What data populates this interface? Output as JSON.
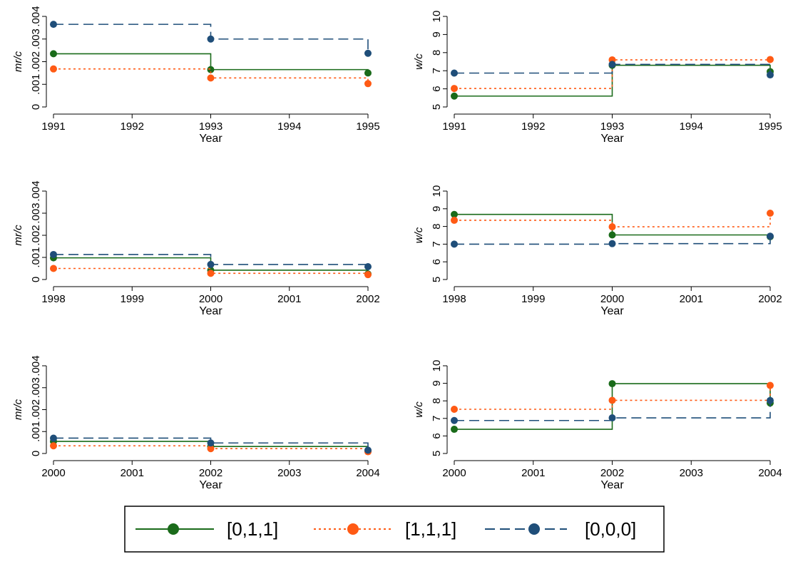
{
  "chart_data": [
    {
      "type": "line",
      "step": true,
      "panel": 1,
      "xlabel": "Year",
      "ylabel": "mr/c",
      "xlim": [
        1991,
        1995
      ],
      "ylim": [
        0,
        0.004
      ],
      "x": [
        1991,
        1993,
        1995
      ],
      "x_ticks": [
        "1991",
        "1992",
        "1993",
        "1994",
        "1995"
      ],
      "y_ticks": [
        {
          "value": 0,
          "label": "0"
        },
        {
          "value": 0.001,
          "label": ".001"
        },
        {
          "value": 0.002,
          "label": ".002"
        },
        {
          "value": 0.003,
          "label": ".003"
        },
        {
          "value": 0.004,
          "label": ".004"
        }
      ],
      "series": [
        {
          "name": "[0,1,1]",
          "values": [
            0.00235,
            0.00165,
            0.0015
          ]
        },
        {
          "name": "[1,1,1]",
          "values": [
            0.00168,
            0.00128,
            0.00103
          ]
        },
        {
          "name": "[0,0,0]",
          "values": [
            0.00365,
            0.003,
            0.00237
          ]
        }
      ]
    },
    {
      "type": "line",
      "step": true,
      "panel": 2,
      "xlabel": "Year",
      "ylabel": "w/c",
      "xlim": [
        1991,
        1995
      ],
      "ylim": [
        5,
        10
      ],
      "x": [
        1991,
        1993,
        1995
      ],
      "x_ticks": [
        "1991",
        "1992",
        "1993",
        "1994",
        "1995"
      ],
      "y_ticks": [
        {
          "value": 5,
          "label": "5"
        },
        {
          "value": 6,
          "label": "6"
        },
        {
          "value": 7,
          "label": "7"
        },
        {
          "value": 8,
          "label": "8"
        },
        {
          "value": 9,
          "label": "9"
        },
        {
          "value": 10,
          "label": "10"
        }
      ],
      "series": [
        {
          "name": "[0,1,1]",
          "values": [
            5.6,
            7.3,
            6.95
          ]
        },
        {
          "name": "[1,1,1]",
          "values": [
            6.02,
            7.6,
            7.62
          ]
        },
        {
          "name": "[0,0,0]",
          "values": [
            6.87,
            7.35,
            6.77
          ]
        }
      ]
    },
    {
      "type": "line",
      "step": true,
      "panel": 3,
      "xlabel": "Year",
      "ylabel": "mr/c",
      "xlim": [
        1998,
        2002
      ],
      "ylim": [
        0,
        0.004
      ],
      "x": [
        1998,
        2000,
        2002
      ],
      "x_ticks": [
        "1998",
        "1999",
        "2000",
        "2001",
        "2002"
      ],
      "y_ticks": [
        {
          "value": 0,
          "label": "0"
        },
        {
          "value": 0.001,
          "label": ".001"
        },
        {
          "value": 0.002,
          "label": ".002"
        },
        {
          "value": 0.003,
          "label": ".003"
        },
        {
          "value": 0.004,
          "label": ".004"
        }
      ],
      "series": [
        {
          "name": "[0,1,1]",
          "values": [
            0.00098,
            0.00042,
            0.00025
          ]
        },
        {
          "name": "[1,1,1]",
          "values": [
            0.0005,
            0.00028,
            0.00022
          ]
        },
        {
          "name": "[0,0,0]",
          "values": [
            0.00113,
            0.00068,
            0.00058
          ]
        }
      ]
    },
    {
      "type": "line",
      "step": true,
      "panel": 4,
      "xlabel": "Year",
      "ylabel": "w/c",
      "xlim": [
        1998,
        2002
      ],
      "ylim": [
        5,
        10
      ],
      "x": [
        1998,
        2000,
        2002
      ],
      "x_ticks": [
        "1998",
        "1999",
        "2000",
        "2001",
        "2002"
      ],
      "y_ticks": [
        {
          "value": 5,
          "label": "5"
        },
        {
          "value": 6,
          "label": "6"
        },
        {
          "value": 7,
          "label": "7"
        },
        {
          "value": 8,
          "label": "8"
        },
        {
          "value": 9,
          "label": "9"
        },
        {
          "value": 10,
          "label": "10"
        }
      ],
      "series": [
        {
          "name": "[0,1,1]",
          "values": [
            8.68,
            7.52,
            7.42
          ]
        },
        {
          "name": "[1,1,1]",
          "values": [
            8.35,
            7.98,
            8.75
          ]
        },
        {
          "name": "[0,0,0]",
          "values": [
            7.0,
            7.03,
            7.45
          ]
        }
      ]
    },
    {
      "type": "line",
      "step": true,
      "panel": 5,
      "xlabel": "Year",
      "ylabel": "mr/c",
      "xlim": [
        2000,
        2004
      ],
      "ylim": [
        0,
        0.004
      ],
      "x": [
        2000,
        2002,
        2004
      ],
      "x_ticks": [
        "2000",
        "2001",
        "2002",
        "2003",
        "2004"
      ],
      "y_ticks": [
        {
          "value": 0,
          "label": "0"
        },
        {
          "value": 0.001,
          "label": ".001"
        },
        {
          "value": 0.002,
          "label": ".002"
        },
        {
          "value": 0.003,
          "label": ".003"
        },
        {
          "value": 0.004,
          "label": ".004"
        }
      ],
      "series": [
        {
          "name": "[0,1,1]",
          "values": [
            0.00055,
            0.00032,
            0.00012
          ]
        },
        {
          "name": "[1,1,1]",
          "values": [
            0.00035,
            0.00022,
            8e-05
          ]
        },
        {
          "name": "[0,0,0]",
          "values": [
            0.0007,
            0.00048,
            0.00015
          ]
        }
      ]
    },
    {
      "type": "line",
      "step": true,
      "panel": 6,
      "xlabel": "Year",
      "ylabel": "w/c",
      "xlim": [
        2000,
        2004
      ],
      "ylim": [
        5,
        10
      ],
      "x": [
        2000,
        2002,
        2004
      ],
      "x_ticks": [
        "2000",
        "2001",
        "2002",
        "2003",
        "2004"
      ],
      "y_ticks": [
        {
          "value": 5,
          "label": "5"
        },
        {
          "value": 6,
          "label": "6"
        },
        {
          "value": 7,
          "label": "7"
        },
        {
          "value": 8,
          "label": "8"
        },
        {
          "value": 9,
          "label": "9"
        },
        {
          "value": 10,
          "label": "10"
        }
      ],
      "series": [
        {
          "name": "[0,1,1]",
          "values": [
            6.38,
            8.98,
            7.88
          ]
        },
        {
          "name": "[1,1,1]",
          "values": [
            7.52,
            8.03,
            8.88
          ]
        },
        {
          "name": "[0,0,0]",
          "values": [
            6.88,
            7.03,
            8.02
          ]
        }
      ]
    }
  ],
  "legend": {
    "position": "bottom-center",
    "items": [
      {
        "label": "[0,1,1]",
        "color": "#1a6b1a",
        "style": "solid"
      },
      {
        "label": "[1,1,1]",
        "color": "#ff5a14",
        "style": "dotted"
      },
      {
        "label": "[0,0,0]",
        "color": "#1f4e79",
        "style": "dashed"
      }
    ]
  },
  "series_styles": [
    {
      "name": "[0,1,1]",
      "color": "#1a6b1a",
      "marker_color": "#1a6b1a",
      "dash": "solid"
    },
    {
      "name": "[1,1,1]",
      "color": "#ff5a14",
      "marker_color": "#ff5a14",
      "dash": "dotted"
    },
    {
      "name": "[0,0,0]",
      "color": "#1f4e79",
      "marker_color": "#1f4e79",
      "dash": "dashed"
    }
  ]
}
